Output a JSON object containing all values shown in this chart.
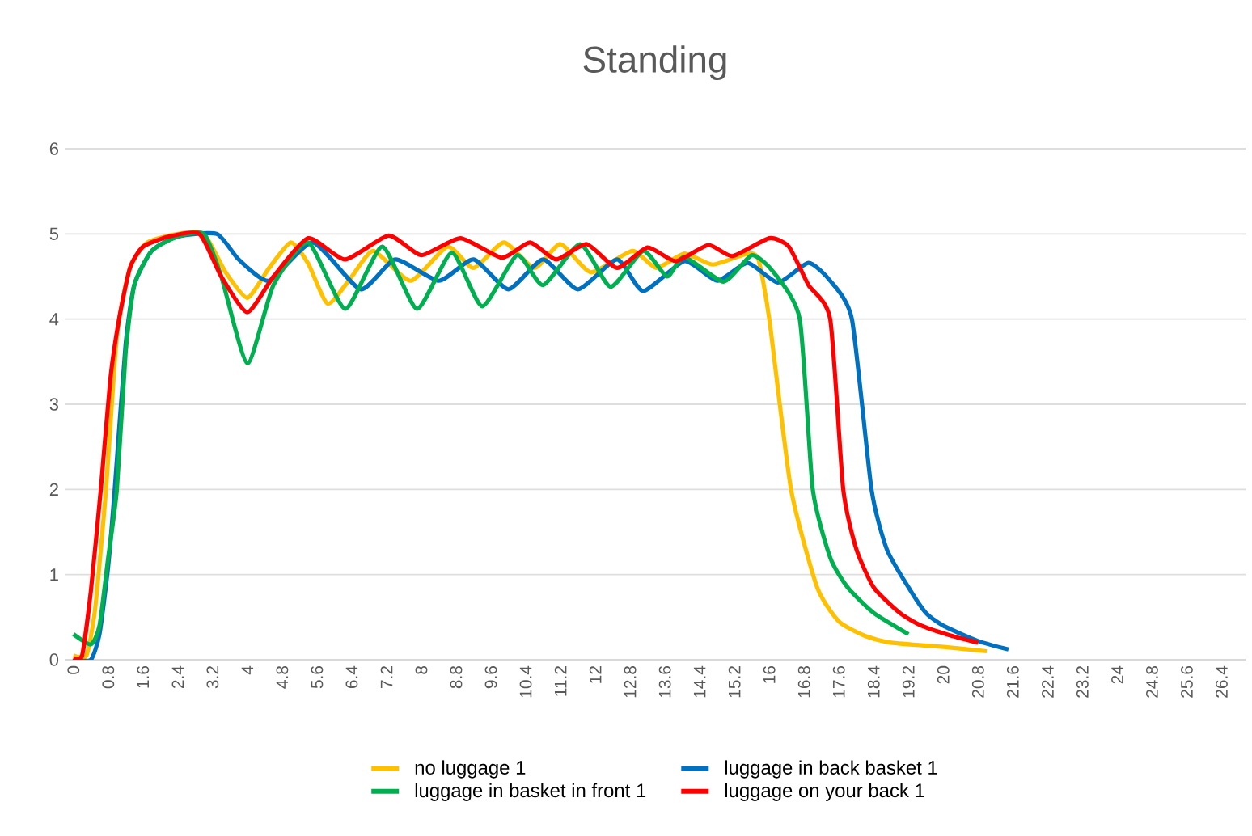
{
  "chart_data": {
    "type": "line",
    "title": "Standing",
    "xlim": [
      -0.2,
      26.95
    ],
    "xticks": [
      0,
      0.8,
      1.6,
      2.4,
      3.2,
      4,
      4.8,
      5.6,
      6.4,
      7.2,
      8,
      8.8,
      9.6,
      10.4,
      11.2,
      12,
      12.8,
      13.6,
      14.4,
      15.2,
      16,
      16.8,
      17.6,
      18.4,
      19.2,
      20,
      20.8,
      21.6,
      22.4,
      23.2,
      24,
      24.8,
      25.6,
      26.4
    ],
    "ylim": [
      0,
      6
    ],
    "yticks": [
      0,
      1,
      2,
      3,
      4,
      5,
      6
    ],
    "grid": "y",
    "legend": "bottom",
    "marker": "none",
    "line_style": "solid",
    "series": [
      {
        "name": "no luggage 1",
        "color": "#ffc000",
        "x": [
          0,
          0.3,
          0.5,
          0.75,
          1.0,
          1.3,
          1.7,
          2.4,
          3.0,
          3.5,
          4.0,
          4.5,
          5.0,
          5.4,
          5.85,
          6.4,
          6.9,
          7.75,
          8.6,
          9.2,
          9.9,
          10.6,
          11.2,
          11.9,
          12.85,
          13.4,
          14.05,
          14.7,
          15.5,
          15.75,
          16.0,
          16.5,
          17.1,
          17.6,
          18.2,
          18.8,
          20.0,
          21.0
        ],
        "values": [
          0.05,
          0.05,
          0.6,
          2,
          3.8,
          4.6,
          4.9,
          5.0,
          5.0,
          4.55,
          4.25,
          4.6,
          4.9,
          4.65,
          4.18,
          4.5,
          4.8,
          4.45,
          4.85,
          4.6,
          4.9,
          4.6,
          4.88,
          4.55,
          4.8,
          4.6,
          4.77,
          4.64,
          4.77,
          4.7,
          4.0,
          2.0,
          0.85,
          0.45,
          0.28,
          0.2,
          0.15,
          0.1
        ]
      },
      {
        "name": "luggage in back basket 1",
        "color": "#0070c0",
        "x": [
          0,
          0.4,
          0.6,
          0.8,
          0.95,
          1.2,
          1.4,
          1.8,
          2.4,
          3.3,
          3.8,
          4.5,
          5.5,
          6.6,
          7.4,
          8.4,
          9.2,
          10.0,
          10.8,
          11.6,
          12.5,
          13.1,
          14.05,
          14.8,
          15.5,
          16.2,
          16.9,
          17.4,
          17.9,
          18.35,
          18.7,
          19.2,
          19.6,
          20.0,
          20.8,
          21.5
        ],
        "values": [
          0.0,
          0.0,
          0.3,
          1.1,
          2.0,
          3.7,
          4.4,
          4.8,
          4.97,
          5.0,
          4.7,
          4.45,
          4.9,
          4.35,
          4.7,
          4.45,
          4.7,
          4.35,
          4.7,
          4.35,
          4.7,
          4.33,
          4.68,
          4.45,
          4.66,
          4.43,
          4.66,
          4.45,
          4.0,
          2.0,
          1.3,
          0.85,
          0.55,
          0.4,
          0.22,
          0.12
        ]
      },
      {
        "name": "luggage in basket in front 1",
        "color": "#00b050",
        "x": [
          0,
          0.4,
          0.6,
          0.8,
          1.0,
          1.2,
          1.4,
          1.8,
          2.4,
          3.0,
          3.4,
          4.0,
          4.6,
          5.4,
          6.25,
          7.1,
          7.9,
          8.7,
          9.4,
          10.2,
          10.8,
          11.65,
          12.35,
          13.1,
          13.65,
          14.05,
          14.95,
          15.6,
          16.1,
          16.7,
          17.0,
          17.4,
          17.8,
          18.4,
          19.2
        ],
        "values": [
          0.3,
          0.18,
          0.4,
          1.2,
          2.0,
          3.6,
          4.4,
          4.8,
          4.97,
          5.0,
          4.5,
          3.48,
          4.4,
          4.9,
          4.12,
          4.85,
          4.12,
          4.78,
          4.15,
          4.75,
          4.4,
          4.88,
          4.38,
          4.8,
          4.5,
          4.73,
          4.44,
          4.75,
          4.55,
          4.0,
          2.0,
          1.2,
          0.85,
          0.55,
          0.3
        ]
      },
      {
        "name": "luggage on your back 1",
        "color": "#ff0000",
        "x": [
          0,
          0.2,
          0.4,
          0.63,
          0.85,
          1.05,
          1.3,
          1.6,
          2.2,
          2.9,
          3.4,
          4.0,
          4.6,
          5.4,
          6.25,
          7.25,
          8.0,
          8.9,
          9.85,
          10.5,
          11.1,
          11.8,
          12.5,
          13.2,
          13.85,
          14.6,
          15.15,
          16.0,
          16.45,
          16.9,
          17.4,
          17.7,
          18.0,
          18.4,
          19.0,
          19.5,
          20.2,
          20.8
        ],
        "values": [
          0.02,
          0.05,
          0.8,
          2.0,
          3.3,
          4.0,
          4.6,
          4.85,
          4.97,
          5.0,
          4.5,
          4.08,
          4.5,
          4.95,
          4.7,
          4.98,
          4.75,
          4.95,
          4.72,
          4.9,
          4.7,
          4.88,
          4.6,
          4.84,
          4.68,
          4.87,
          4.74,
          4.95,
          4.85,
          4.4,
          4.0,
          2.0,
          1.3,
          0.85,
          0.55,
          0.4,
          0.28,
          0.2
        ]
      }
    ]
  }
}
